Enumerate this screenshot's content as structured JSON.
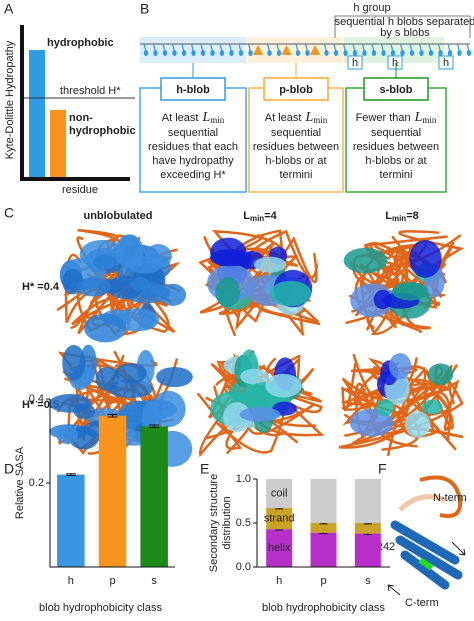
{
  "panel_labels": [
    "A",
    "B",
    "C",
    "D",
    "E",
    "F"
  ],
  "panel_a": {
    "y_label": "Kyte-Dolittle Hydropathy",
    "x_label": "residue",
    "hydrophobic": "hydrophobic",
    "threshold": "threshold H*",
    "non_hydrophobic": [
      "non-",
      "hydrophobic"
    ]
  },
  "lmin": {
    "symbol": "L",
    "subscript": "min"
  },
  "panel_b": {
    "group_label": "h group",
    "group_note": [
      "sequential h blobs separated",
      "by s blobs"
    ],
    "mini_box": "h",
    "blobs": [
      {
        "name": "h-blob",
        "lead": "At least",
        "lines": [
          "sequential",
          "residues that each",
          "have hydropathy",
          "exceeding H*"
        ]
      },
      {
        "name": "p-blob",
        "lead": "At least",
        "lines": [
          "sequential",
          "residues between",
          "h-blobs or at",
          "termini"
        ]
      },
      {
        "name": "s-blob",
        "lead": "Fewer than",
        "lines": [
          "sequential",
          "residues between",
          "h-blobs or at",
          "termini"
        ]
      }
    ]
  },
  "panel_c": {
    "columns": [
      {
        "text": "unblobulated"
      },
      {
        "text": "=4"
      },
      {
        "text": "=8"
      }
    ],
    "rows": [
      "H* =0.4",
      "H* =0.5"
    ]
  },
  "panel_f": {
    "labels": [
      "N-term",
      "R42",
      "C-term"
    ]
  },
  "chart_data": [
    {
      "type": "bar",
      "y_label": "Relative SASA",
      "x_label": "blob hydrophobicity class",
      "categories": [
        "h",
        "p",
        "s"
      ],
      "values": [
        0.22,
        0.36,
        0.335
      ],
      "errors": [
        0.002,
        0.003,
        0.003
      ],
      "colors": [
        "#3a96e0",
        "#f7941d",
        "#1b8a1b"
      ],
      "ylim": [
        0,
        0.4
      ],
      "yticks": [
        0.2,
        0.4
      ]
    },
    {
      "type": "stacked_bar",
      "y_label": [
        "Secondary structure",
        "distribution"
      ],
      "x_label": "blob hydrophobicity class",
      "categories": [
        "h",
        "p",
        "s"
      ],
      "series": [
        {
          "name": "helix",
          "color": "#b52fc8",
          "values": [
            0.43,
            0.39,
            0.38
          ],
          "errors": [
            0.01,
            0.01,
            0.01
          ]
        },
        {
          "name": "strand",
          "color": "#c9a227",
          "values": [
            0.24,
            0.11,
            0.12
          ],
          "errors": [
            0.01,
            0.01,
            0.01
          ]
        },
        {
          "name": "coil",
          "color": "#cccccc",
          "values": [
            0.33,
            0.5,
            0.5
          ]
        }
      ],
      "ylim": [
        0,
        1
      ],
      "yticks": [
        {
          "value": 0,
          "label": "0.0"
        },
        {
          "value": 0.5,
          "label": "0.5"
        },
        {
          "value": 1,
          "label": "1.0"
        }
      ]
    }
  ]
}
